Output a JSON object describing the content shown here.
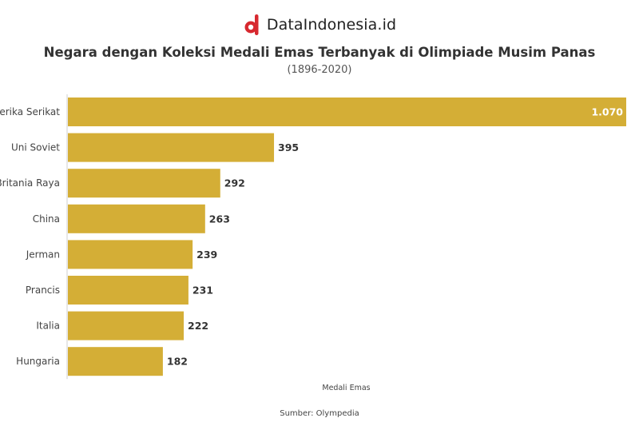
{
  "brand": {
    "name": "DataIndonesia.id",
    "logo_icon": "dataindonesia-logo-icon",
    "logo_color": "#d7282f"
  },
  "header": {
    "title": "Negara dengan Koleksi Medali Emas Terbanyak di Olimpiade Musim Panas",
    "subtitle": "(1896-2020)"
  },
  "footer": {
    "source": "Sumber: Olympedia"
  },
  "chart_data": {
    "type": "bar",
    "orientation": "horizontal",
    "categories": [
      "Amerika Serikat",
      "Uni Soviet",
      "Britania Raya",
      "China",
      "Jerman",
      "Prancis",
      "Italia",
      "Hungaria"
    ],
    "values": [
      1070,
      395,
      292,
      263,
      239,
      231,
      222,
      182
    ],
    "value_labels": [
      "1.070",
      "395",
      "292",
      "263",
      "239",
      "231",
      "222",
      "182"
    ],
    "title": "Negara dengan Koleksi Medali Emas Terbanyak di Olimpiade Musim Panas",
    "subtitle": "(1896-2020)",
    "xlabel": "Medali Emas",
    "ylabel": "",
    "xlim": [
      0,
      1070
    ],
    "grid": false,
    "legend": "none",
    "bar_color": "#d4ae36"
  }
}
